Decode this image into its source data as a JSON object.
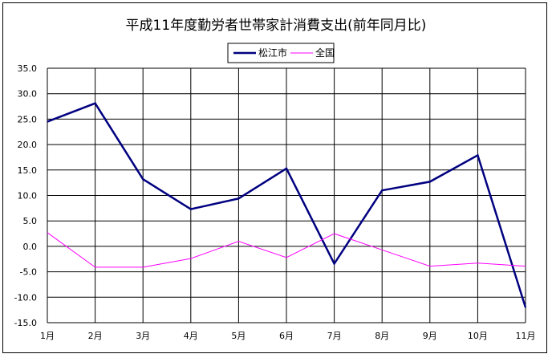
{
  "chart_data": {
    "type": "line",
    "title": "平成11年度勤労者世帯家計消費支出(前年同月比)",
    "xlabel": "",
    "ylabel": "",
    "categories": [
      "1月",
      "2月",
      "3月",
      "4月",
      "5月",
      "6月",
      "7月",
      "8月",
      "9月",
      "10月",
      "11月"
    ],
    "series": [
      {
        "name": "松江市",
        "color": "#000080",
        "values": [
          24.5,
          28.1,
          13.2,
          7.3,
          9.4,
          15.3,
          -3.4,
          11.0,
          12.7,
          17.9,
          -12.0
        ]
      },
      {
        "name": "全国",
        "color": "#ff00ff",
        "values": [
          2.7,
          -4.1,
          -4.1,
          -2.4,
          1.0,
          -2.2,
          2.5,
          -0.7,
          -3.9,
          -3.3,
          -3.9
        ]
      }
    ],
    "ylim": [
      -15.0,
      35.0
    ],
    "yticks": [
      "-15.0",
      "-10.0",
      "-5.0",
      "0.0",
      "5.0",
      "10.0",
      "15.0",
      "20.0",
      "25.0",
      "30.0",
      "35.0"
    ],
    "grid": true,
    "legend_position": "top-center"
  }
}
